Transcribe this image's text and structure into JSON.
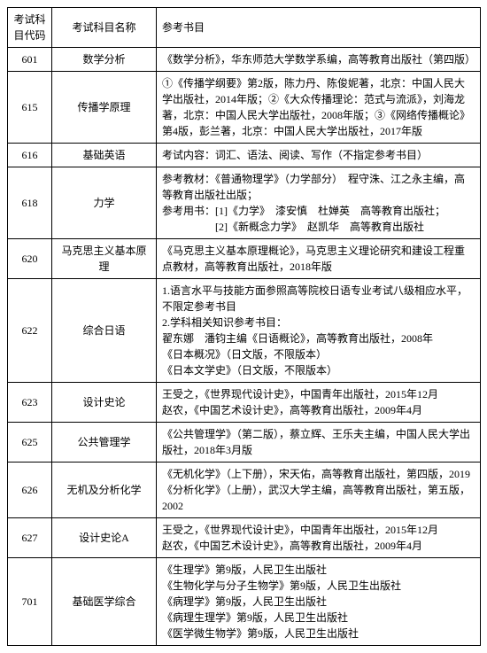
{
  "headers": {
    "code": "考试科目代码",
    "name": "考试科目名称",
    "refs": "参考书目"
  },
  "rows": [
    {
      "code": "601",
      "name": "数学分析",
      "refs": "《数学分析》，华东师范大学数学系编，高等教育出版社（第四版）"
    },
    {
      "code": "615",
      "name": "传播学原理",
      "refs": "①《传播学纲要》第2版，陈力丹、陈俊妮著，北京：中国人民大学出版社，2014年版；②《大众传播理论：范式与流派》，刘海龙著，北京：中国人民大学出版社，2008年版；③《网络传播概论》第4版，彭兰著，北京：中国人民大学出版社，2017年版"
    },
    {
      "code": "616",
      "name": "基础英语",
      "refs": "考试内容：词汇、语法、阅读、写作（不指定参考书目）"
    },
    {
      "code": "618",
      "name": "力学",
      "refs": "参考教材：《普通物理学》（力学部分）　程守洙、江之永主编，高等教育出版社出版；\n参考用书：[1]《力学》　漆安慎　杜婵英　高等教育出版社；\n　　　　　[2]《新概念力学》　赵凯华　高等教育出版社"
    },
    {
      "code": "620",
      "name": "马克思主义基本原理",
      "refs": "《马克思主义基本原理概论》，马克思主义理论研究和建设工程重点教材，高等教育出版社，2018年版"
    },
    {
      "code": "622",
      "name": "综合日语",
      "refs": "1.语言水平与技能方面参照高等院校日语专业考试八级相应水平，不限定参考书目\n2.学科相关知识参考书目：\n翟东娜　潘钧主编《日语概论》，高等教育出版社，2008年\n《日本概况》（日文版，不限版本）\n《日本文学史》（日文版，不限版本）"
    },
    {
      "code": "623",
      "name": "设计史论",
      "refs": "王受之，《世界现代设计史》，中国青年出版社，2015年12月\n赵农，《中国艺术设计史》，高等教育出版社，2009年4月"
    },
    {
      "code": "625",
      "name": "公共管理学",
      "refs": "《公共管理学》（第二版），蔡立辉、王乐夫主编，中国人民大学出版社，2018年3月版"
    },
    {
      "code": "626",
      "name": "无机及分析化学",
      "refs": "《无机化学》（上下册），宋天佑，高等教育出版社，第四版，2019\n《分析化学》（上册），武汉大学主编，高等教育出版社，第五版，2002"
    },
    {
      "code": "627",
      "name": "设计史论A",
      "refs": "王受之，《世界现代设计史》，中国青年出版社，2015年12月\n赵农，《中国艺术设计史》，高等教育出版社，2009年4月"
    },
    {
      "code": "701",
      "name": "基础医学综合",
      "refs": "《生理学》第9版，人民卫生出版社\n《生物化学与分子生物学》第9版，人民卫生出版社\n《病理学》第9版，人民卫生出版社\n《病理生理学》第9版，人民卫生出版社\n《医学微生物学》第9版，人民卫生出版社"
    }
  ]
}
